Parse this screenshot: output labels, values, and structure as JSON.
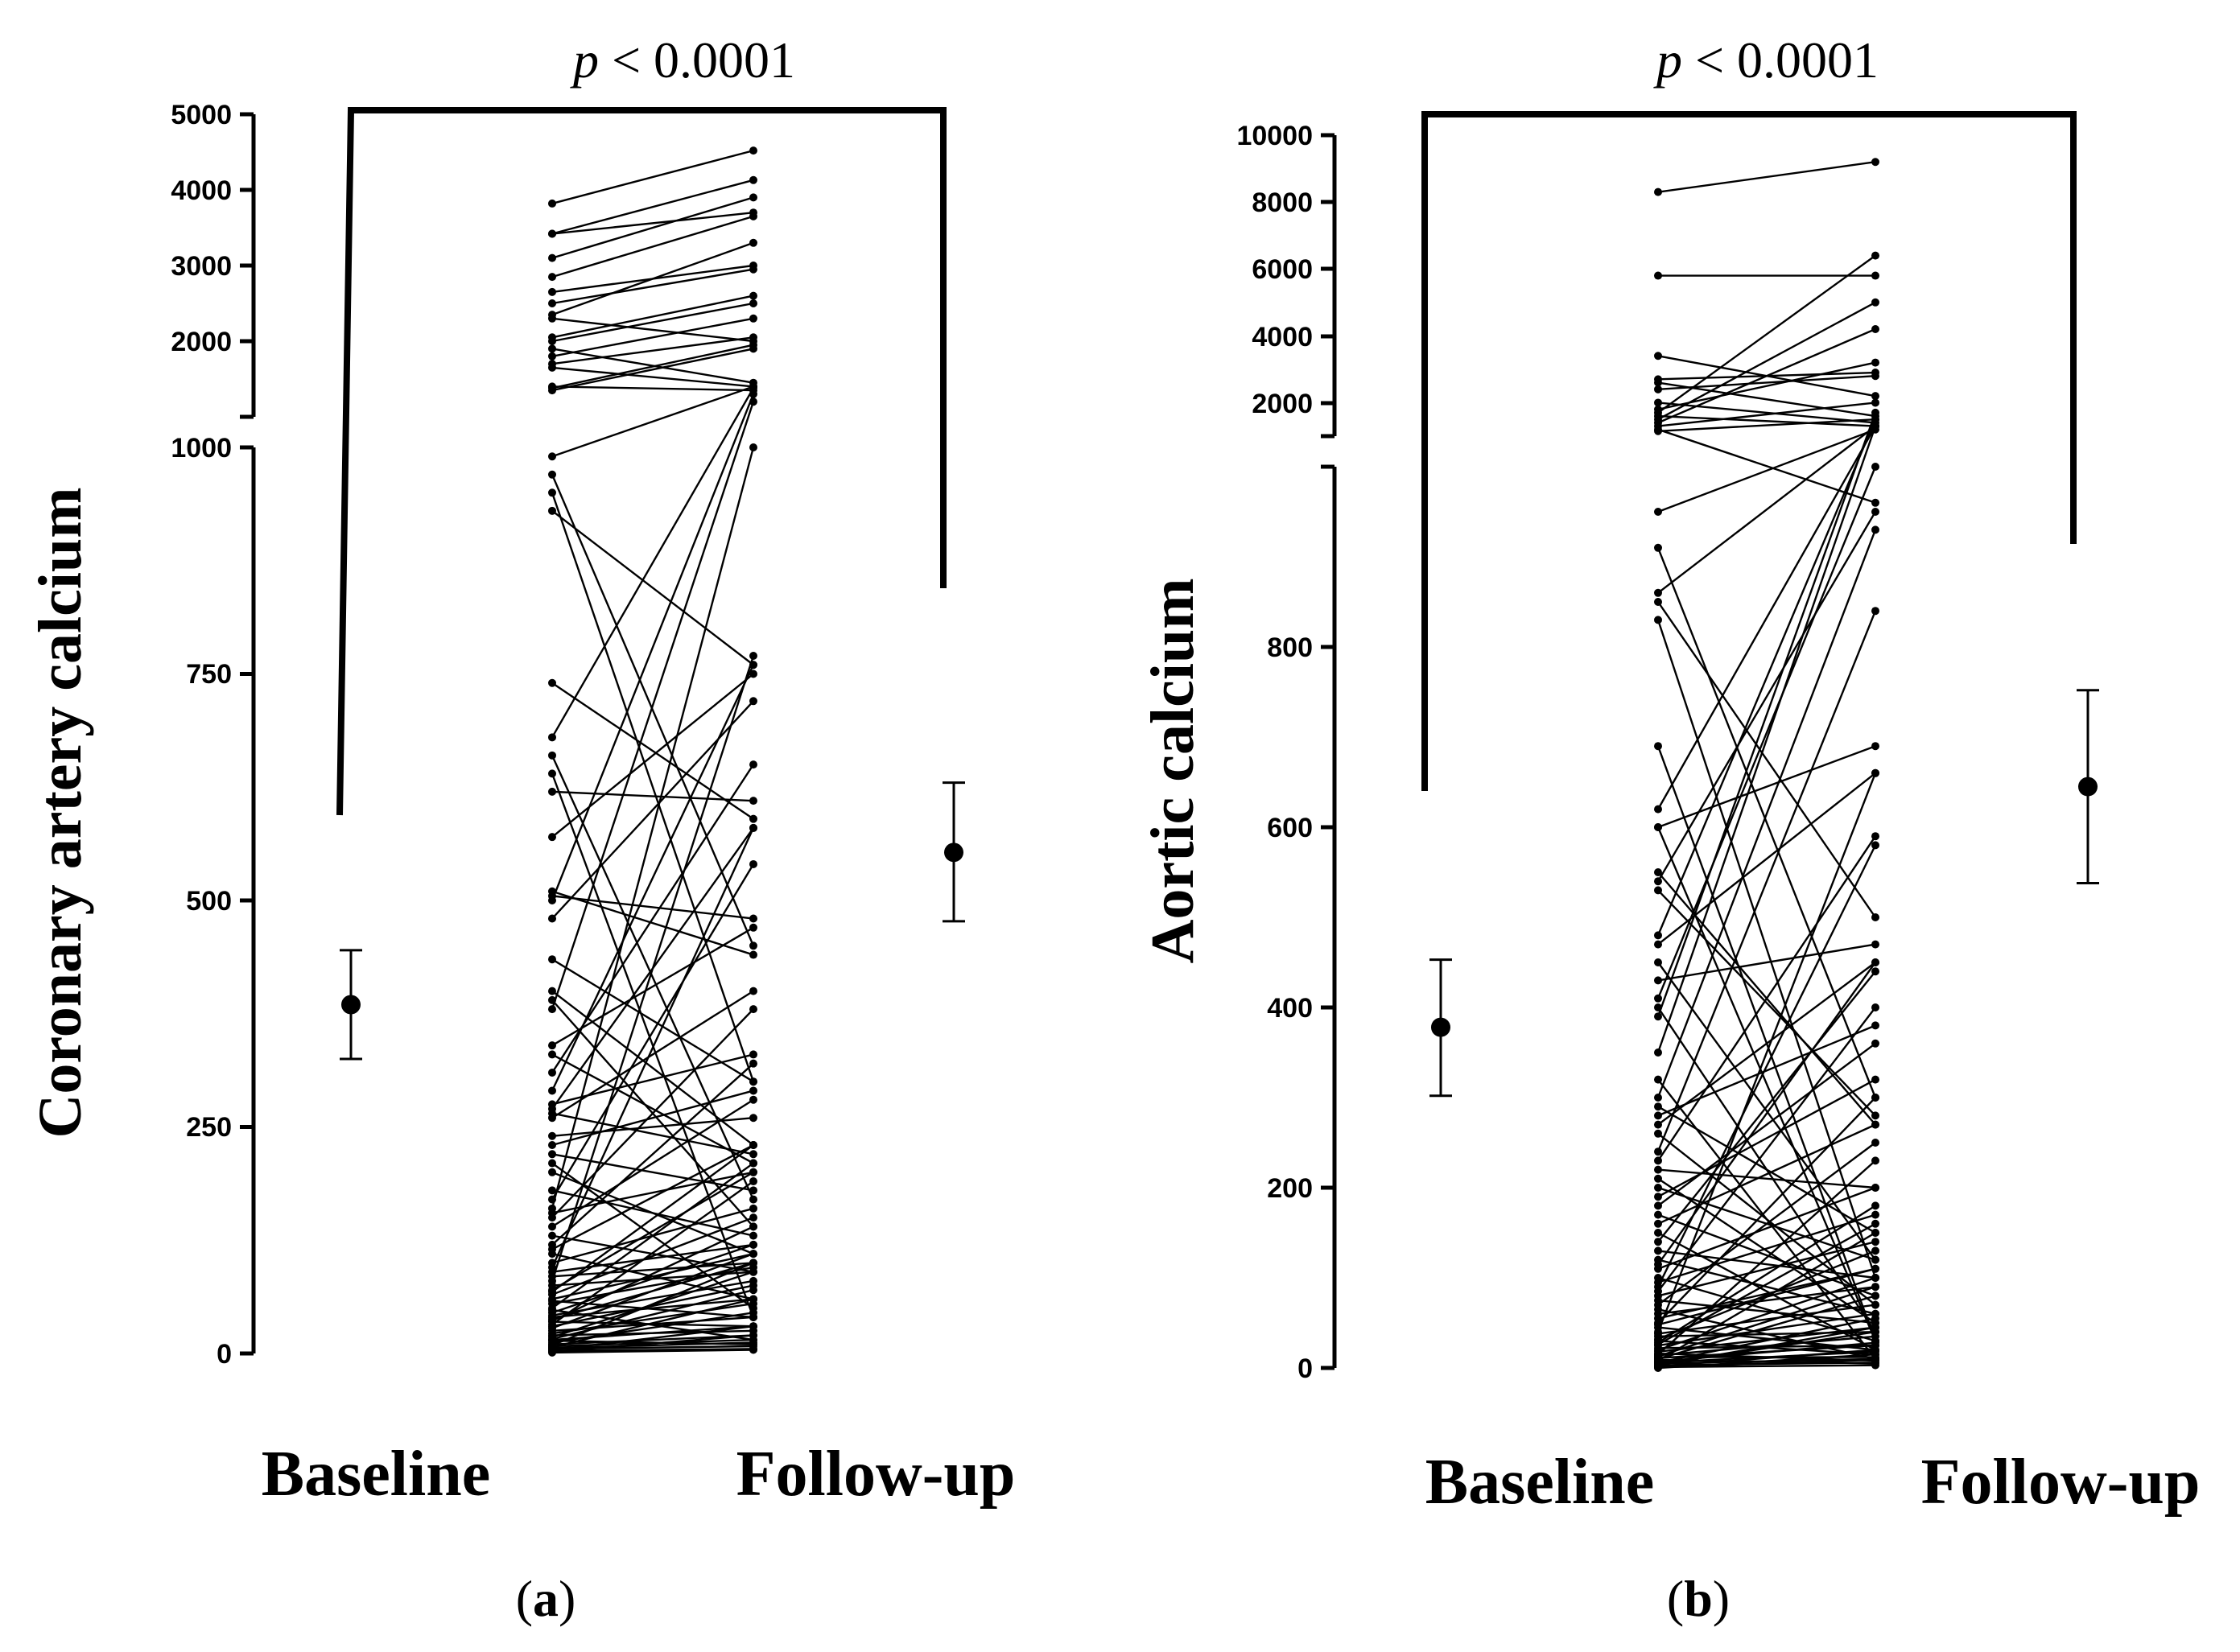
{
  "figure": {
    "panel_labels": [
      "a",
      "b"
    ]
  },
  "chart_data": [
    {
      "type": "line",
      "subtype": "paired-dot-plot-with-mean-ci",
      "panel": "a",
      "ylabel": "Coronary artery calcium",
      "pvalue_italic": "p",
      "pvalue_rest": " < 0.0001",
      "categories": [
        "Baseline",
        "Follow-up"
      ],
      "axis_segments": [
        {
          "name": "lower",
          "ylim": [
            0,
            1000
          ],
          "ticks": [
            0,
            250,
            500,
            750,
            1000
          ],
          "tick_labels": [
            "0",
            "250",
            "500",
            "750",
            "1000"
          ]
        },
        {
          "name": "upper",
          "ylim": [
            1000,
            5000
          ],
          "ticks": [
            2000,
            3000,
            4000,
            5000
          ],
          "tick_labels": [
            "2000",
            "3000",
            "4000",
            "5000"
          ]
        }
      ],
      "summary": [
        {
          "group": "Baseline",
          "mean": 385,
          "ci": [
            325,
            445
          ]
        },
        {
          "group": "Follow-up",
          "mean": 553,
          "ci": [
            477,
            630
          ]
        }
      ],
      "pairs": [
        [
          3820,
          4520
        ],
        [
          3420,
          4130
        ],
        [
          3420,
          3700
        ],
        [
          3100,
          3900
        ],
        [
          2850,
          3650
        ],
        [
          2650,
          3000
        ],
        [
          2500,
          2950
        ],
        [
          2350,
          3300
        ],
        [
          2300,
          2000
        ],
        [
          2050,
          2600
        ],
        [
          2000,
          2500
        ],
        [
          1900,
          1450
        ],
        [
          1800,
          2300
        ],
        [
          1700,
          2050
        ],
        [
          1650,
          1400
        ],
        [
          1400,
          1350
        ],
        [
          1380,
          1950
        ],
        [
          1350,
          1900
        ],
        [
          990,
          1400
        ],
        [
          970,
          450
        ],
        [
          950,
          300
        ],
        [
          930,
          760
        ],
        [
          740,
          590
        ],
        [
          680,
          1380
        ],
        [
          660,
          170
        ],
        [
          640,
          40
        ],
        [
          620,
          610
        ],
        [
          570,
          750
        ],
        [
          510,
          440
        ],
        [
          505,
          480
        ],
        [
          500,
          1300
        ],
        [
          480,
          720
        ],
        [
          435,
          300
        ],
        [
          400,
          230
        ],
        [
          390,
          140
        ],
        [
          380,
          1200
        ],
        [
          340,
          470
        ],
        [
          330,
          210
        ],
        [
          310,
          650
        ],
        [
          290,
          760
        ],
        [
          275,
          330
        ],
        [
          270,
          580
        ],
        [
          265,
          220
        ],
        [
          230,
          290
        ],
        [
          220,
          180
        ],
        [
          210,
          50
        ],
        [
          200,
          110
        ],
        [
          180,
          130
        ],
        [
          160,
          1000
        ],
        [
          155,
          200
        ],
        [
          150,
          380
        ],
        [
          140,
          280
        ],
        [
          120,
          320
        ],
        [
          115,
          230
        ],
        [
          110,
          60
        ],
        [
          100,
          160
        ],
        [
          95,
          580
        ],
        [
          90,
          120
        ],
        [
          85,
          100
        ],
        [
          80,
          770
        ],
        [
          75,
          90
        ],
        [
          70,
          200
        ],
        [
          65,
          150
        ],
        [
          60,
          110
        ],
        [
          58,
          40
        ],
        [
          55,
          95
        ],
        [
          50,
          210
        ],
        [
          45,
          120
        ],
        [
          42,
          80
        ],
        [
          40,
          60
        ],
        [
          38,
          100
        ],
        [
          35,
          30
        ],
        [
          32,
          190
        ],
        [
          30,
          75
        ],
        [
          28,
          110
        ],
        [
          25,
          40
        ],
        [
          22,
          55
        ],
        [
          20,
          25
        ],
        [
          18,
          90
        ],
        [
          15,
          30
        ],
        [
          14,
          10
        ],
        [
          12,
          45
        ],
        [
          10,
          20
        ],
        [
          9,
          100
        ],
        [
          8,
          15
        ],
        [
          7,
          60
        ],
        [
          6,
          12
        ],
        [
          5,
          8
        ],
        [
          4,
          30
        ],
        [
          3,
          5
        ],
        [
          2,
          20
        ],
        [
          1,
          4
        ],
        [
          260,
          400
        ],
        [
          240,
          260
        ],
        [
          170,
          540
        ],
        [
          130,
          90
        ],
        [
          68,
          230
        ],
        [
          48,
          15
        ],
        [
          36,
          140
        ],
        [
          16,
          70
        ]
      ]
    },
    {
      "type": "line",
      "subtype": "paired-dot-plot-with-mean-ci",
      "panel": "b",
      "ylabel": "Aortic calcium",
      "pvalue_italic": "p",
      "pvalue_rest": " < 0.0001",
      "categories": [
        "Baseline",
        "Follow-up"
      ],
      "axis_segments": [
        {
          "name": "lower",
          "ylim": [
            0,
            1000
          ],
          "ticks": [
            0,
            200,
            400,
            600,
            800
          ],
          "tick_labels": [
            "0",
            "200",
            "400",
            "600",
            "800"
          ]
        },
        {
          "name": "upper",
          "ylim": [
            1000,
            10000
          ],
          "ticks": [
            2000,
            4000,
            6000,
            8000,
            10000
          ],
          "tick_labels": [
            "2000",
            "4000",
            "6000",
            "8000",
            "10000"
          ]
        }
      ],
      "summary": [
        {
          "group": "Baseline",
          "mean": 378,
          "ci": [
            302,
            453
          ]
        },
        {
          "group": "Follow-up",
          "mean": 645,
          "ci": [
            538,
            752
          ]
        }
      ],
      "pairs": [
        [
          8300,
          9200
        ],
        [
          5800,
          5800
        ],
        [
          3400,
          2200
        ],
        [
          2700,
          2900
        ],
        [
          2600,
          1600
        ],
        [
          2400,
          2800
        ],
        [
          2000,
          1400
        ],
        [
          1800,
          3200
        ],
        [
          1700,
          6400
        ],
        [
          1600,
          1300
        ],
        [
          1500,
          5000
        ],
        [
          1400,
          4200
        ],
        [
          1300,
          2000
        ],
        [
          1200,
          960
        ],
        [
          1150,
          1500
        ],
        [
          950,
          1200
        ],
        [
          910,
          300
        ],
        [
          860,
          1300
        ],
        [
          850,
          500
        ],
        [
          830,
          100
        ],
        [
          690,
          30
        ],
        [
          620,
          1300
        ],
        [
          600,
          690
        ],
        [
          550,
          270
        ],
        [
          540,
          950
        ],
        [
          530,
          280
        ],
        [
          480,
          1500
        ],
        [
          470,
          660
        ],
        [
          450,
          120
        ],
        [
          430,
          470
        ],
        [
          410,
          1000
        ],
        [
          400,
          40
        ],
        [
          390,
          1700
        ],
        [
          320,
          10
        ],
        [
          300,
          930
        ],
        [
          290,
          150
        ],
        [
          280,
          380
        ],
        [
          270,
          450
        ],
        [
          240,
          840
        ],
        [
          230,
          590
        ],
        [
          220,
          200
        ],
        [
          210,
          50
        ],
        [
          200,
          120
        ],
        [
          180,
          360
        ],
        [
          170,
          80
        ],
        [
          160,
          270
        ],
        [
          150,
          20
        ],
        [
          140,
          440
        ],
        [
          130,
          100
        ],
        [
          120,
          60
        ],
        [
          110,
          200
        ],
        [
          100,
          30
        ],
        [
          95,
          170
        ],
        [
          90,
          580
        ],
        [
          85,
          400
        ],
        [
          80,
          140
        ],
        [
          75,
          50
        ],
        [
          70,
          250
        ],
        [
          65,
          10
        ],
        [
          60,
          90
        ],
        [
          55,
          110
        ],
        [
          50,
          300
        ],
        [
          45,
          20
        ],
        [
          40,
          660
        ],
        [
          38,
          70
        ],
        [
          35,
          40
        ],
        [
          32,
          130
        ],
        [
          30,
          15
        ],
        [
          28,
          180
        ],
        [
          25,
          60
        ],
        [
          22,
          25
        ],
        [
          20,
          100
        ],
        [
          18,
          45
        ],
        [
          16,
          8
        ],
        [
          15,
          230
        ],
        [
          14,
          35
        ],
        [
          12,
          12
        ],
        [
          10,
          80
        ],
        [
          9,
          5
        ],
        [
          8,
          150
        ],
        [
          7,
          28
        ],
        [
          6,
          55
        ],
        [
          5,
          10
        ],
        [
          4,
          40
        ],
        [
          3,
          6
        ],
        [
          2,
          20
        ],
        [
          1,
          3
        ],
        [
          0,
          15
        ],
        [
          600,
          30
        ],
        [
          350,
          1300
        ],
        [
          260,
          70
        ],
        [
          190,
          320
        ],
        [
          115,
          450
        ],
        [
          48,
          110
        ],
        [
          26,
          160
        ],
        [
          13,
          90
        ],
        [
          11,
          25
        ],
        [
          6,
          18
        ],
        [
          3,
          45
        ],
        [
          1,
          9
        ]
      ]
    }
  ]
}
